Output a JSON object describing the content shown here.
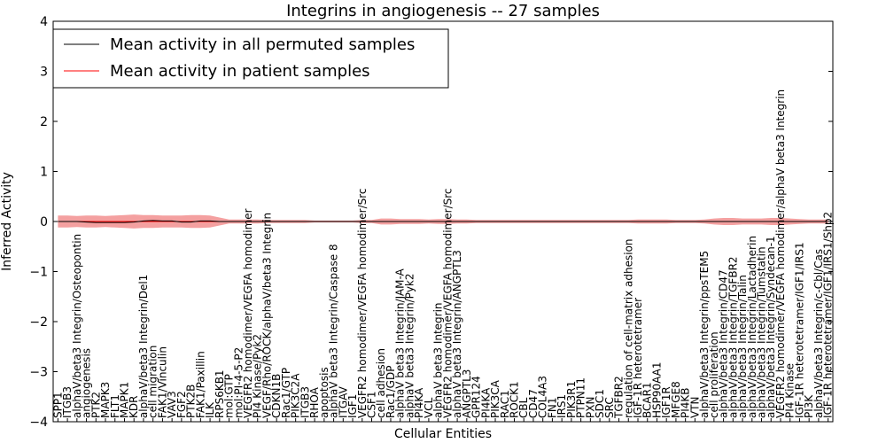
{
  "chart_data": {
    "type": "line",
    "title": "Integrins in angiogenesis -- 27 samples",
    "xlabel": "Cellular Entities",
    "ylabel": "Inferred Activity",
    "ylim": [
      -4,
      4
    ],
    "yticks": [
      -4,
      -3,
      -2,
      -1,
      0,
      1,
      2,
      3,
      4
    ],
    "ytick_labels": [
      "−4",
      "−3",
      "−2",
      "−1",
      "0",
      "1",
      "2",
      "3",
      "4"
    ],
    "legend": {
      "position": "top-left",
      "entries": [
        {
          "label": "Mean activity in all permuted samples",
          "color": "#000000"
        },
        {
          "label": "Mean activity in patient samples",
          "color": "#ff0000"
        }
      ]
    },
    "categories": [
      "SPP1",
      "ITGB3",
      "alphaV/beta3 Integrin/Osteopontin",
      "angiogenesis",
      "PTK2",
      "MAPK3",
      "FLT1",
      "MAPK1",
      "KDR",
      "alphaV/beta3 Integrin/Del1",
      "cell migration",
      "FAK1/Vinculin",
      "VAV3",
      "FGF2",
      "PTK2B",
      "FAK1/Paxillin",
      "ILK",
      "RPS6KB1",
      "mol:GTP",
      "mol:PI-4-5-P2",
      "VEGFR2 homodimer/VEGFA homodimer",
      "PI4 Kinase/Pyk2",
      "VEGF/Rho/ROCK/alphaV/beta3 Integrin",
      "CDKN1B",
      "Rac1/GTP",
      "PIK3C2A",
      "ITGB3",
      "RHOA",
      "apoptosis",
      "alphaV beta3 Integrin/Caspase 8",
      "ITGAV",
      "IGF1",
      "VEGFR2 homodimer/VEGFA homodimer/Src",
      "CSF1",
      "cell adhesion",
      "Rac1/GDP",
      "alphaV beta3 Integrin/JAM-A",
      "alphaV beta3 Integrin/Pyk2",
      "PI4KA",
      "VCL",
      "alphaV beta3 Integrin",
      "VEGFR2 homodimer/VEGFA homodimer/Src",
      "alphaV beta3 Integrin/ANGPTL3",
      "ANGPTL3",
      "GPR124",
      "PI4KA",
      "PIK3CA",
      "RAC1",
      "ROCK1",
      "CBL",
      "CD47",
      "COL4A3",
      "FN1",
      "IRS1",
      "PIK3R1",
      "PTPN11",
      "PXN",
      "SDC1",
      "SRC",
      "TGFBR2",
      "regulation of cell-matrix adhesion",
      "IGF-1R heterotetramer",
      "BCAR1",
      "HSP90AA1",
      "IGF1R",
      "MFGE8",
      "PI4KB",
      "VTN",
      "alphaV/beta3 Integrin/ppsTEM5",
      "cell proliferation",
      "alphaV/beta3 Integrin/CD47",
      "alphaV/beta3 Integrin/TGFBR2",
      "alphaV/beta3 Integrin/Talin",
      "alphaV/beta3 Integrin/Lactadherin",
      "alphaV/beta3 Integrin/Tumstatin",
      "alphaV/beta3 Integrin/Syndecan-1",
      "VEGFR2 homodimer/VEGFA homodimer/alphaV beta3 Integrin",
      "PI4 Kinase",
      "IGF-1R heterotetramer/IGF1/IRS1",
      "PI3K",
      "alphaV/beta3 Integrin/c-Cbl/Cas",
      "IGF-1R heterotetramer/IGF1/IRS1/Shp2"
    ],
    "series": [
      {
        "name": "Mean activity in all permuted samples",
        "values": [
          0,
          0,
          0,
          -0.01,
          -0.02,
          -0.02,
          -0.02,
          -0.02,
          -0.01,
          0.01,
          0.02,
          0.01,
          0.01,
          -0.01,
          -0.01,
          0.01,
          0.01,
          0,
          0,
          0,
          0,
          0,
          0,
          0,
          0,
          0,
          0,
          0,
          0,
          0,
          0,
          0,
          0,
          0,
          0,
          0,
          0,
          0,
          0,
          0,
          0,
          0,
          0,
          0,
          0,
          0,
          0,
          0,
          0,
          0,
          0,
          0,
          0,
          0,
          0,
          0,
          0,
          0,
          0,
          0,
          0,
          0,
          0,
          0,
          0,
          0,
          0,
          0,
          0,
          0,
          0,
          0,
          0,
          0,
          0,
          0,
          0,
          0,
          0,
          0,
          0,
          0
        ],
        "band_half_width": [
          0.12,
          0.12,
          0.11,
          0.12,
          0.12,
          0.11,
          0.12,
          0.13,
          0.14,
          0.13,
          0.13,
          0.12,
          0.12,
          0.12,
          0.13,
          0.13,
          0.12,
          0.08,
          0.04,
          0.04,
          0.04,
          0.04,
          0.03,
          0.03,
          0.03,
          0.03,
          0.03,
          0.02,
          0.02,
          0.02,
          0.02,
          0.02,
          0.03,
          0.03,
          0.06,
          0.06,
          0.05,
          0.05,
          0.05,
          0.04,
          0.05,
          0.05,
          0.04,
          0.04,
          0.03,
          0.03,
          0.03,
          0.03,
          0.03,
          0.03,
          0.03,
          0.03,
          0.03,
          0.03,
          0.03,
          0.03,
          0.03,
          0.03,
          0.03,
          0.03,
          0.03,
          0.04,
          0.04,
          0.04,
          0.04,
          0.03,
          0.03,
          0.03,
          0.04,
          0.06,
          0.07,
          0.07,
          0.06,
          0.06,
          0.06,
          0.07,
          0.07,
          0.06,
          0.05,
          0.04,
          0.04,
          0.04
        ]
      },
      {
        "name": "Mean activity in patient samples",
        "values": [
          0,
          0,
          0,
          0,
          0,
          0,
          0,
          0,
          0,
          0,
          0,
          0,
          0,
          0,
          0,
          0,
          0,
          0,
          0,
          0,
          0,
          0,
          0,
          0,
          0,
          0,
          0,
          0,
          0,
          0,
          0,
          0,
          0,
          0,
          0,
          0,
          0,
          0,
          0,
          0,
          0,
          0,
          0,
          0,
          0,
          0,
          0,
          0,
          0,
          0,
          0,
          0,
          0,
          0,
          0,
          0,
          0,
          0,
          0,
          0,
          0,
          0,
          0,
          0,
          0,
          0,
          0,
          0,
          0,
          0,
          0,
          0,
          0,
          0,
          0,
          0,
          0,
          0,
          0,
          0,
          0,
          0
        ]
      }
    ]
  }
}
